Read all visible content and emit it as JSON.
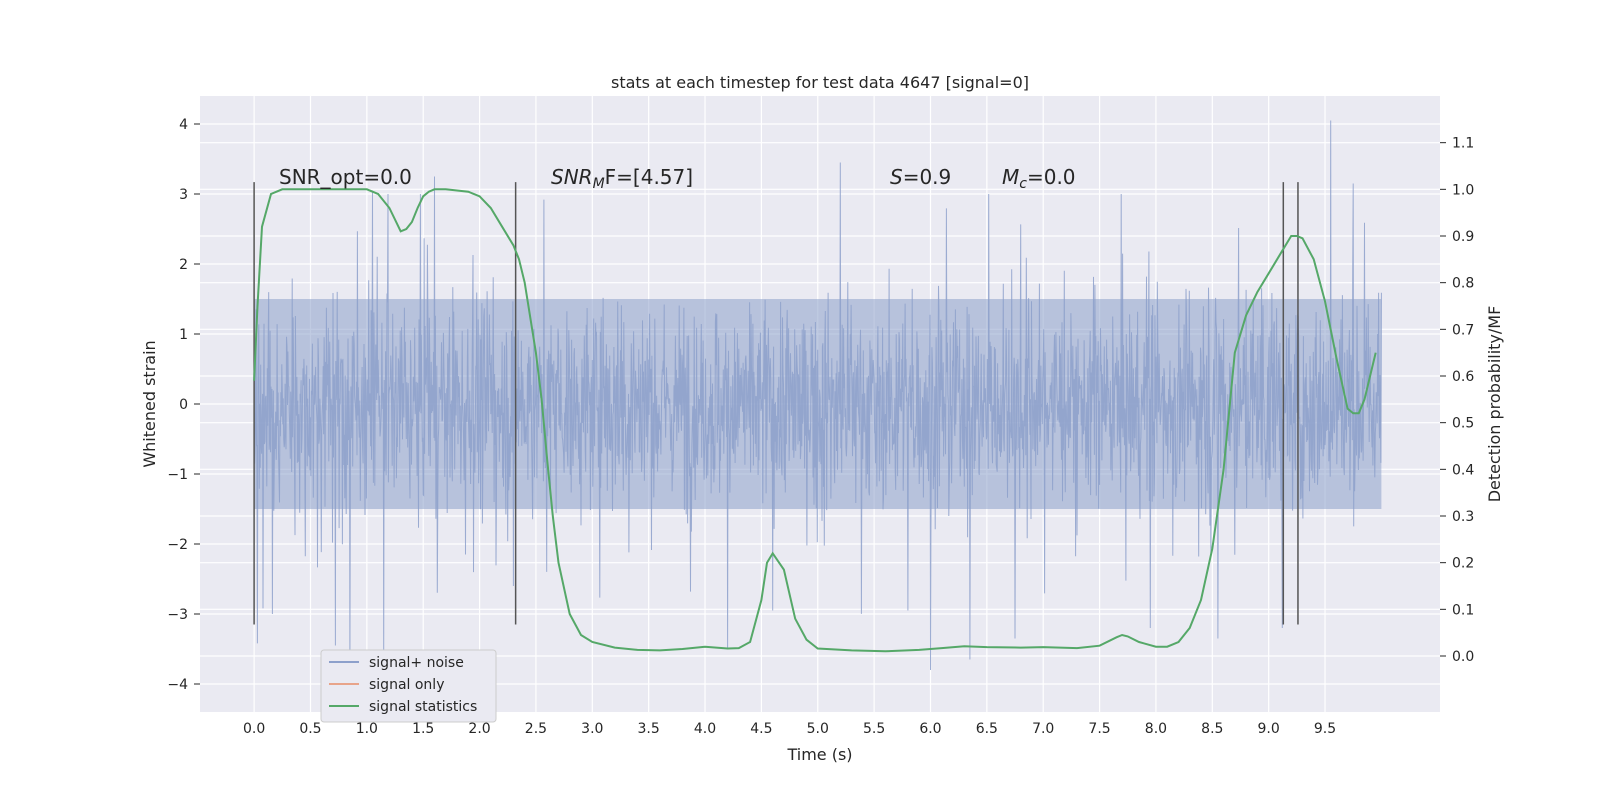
{
  "chart_data": {
    "type": "line",
    "title": "stats at each timestep for test data 4647 [signal=0]",
    "xlabel": "Time (s)",
    "ylabel": "Whitened strain",
    "y2label": "Detection probability/MF",
    "xlim": [
      -0.48,
      10.52
    ],
    "ylim": [
      -4.4,
      4.4
    ],
    "y2lim": [
      -0.12,
      1.2
    ],
    "grid": true,
    "x_ticks": [
      "0.0",
      "0.5",
      "1.0",
      "1.5",
      "2.0",
      "2.5",
      "3.0",
      "3.5",
      "4.0",
      "4.5",
      "5.0",
      "5.5",
      "6.0",
      "6.5",
      "7.0",
      "7.5",
      "8.0",
      "8.5",
      "9.0",
      "9.5"
    ],
    "y_ticks": [
      "−4",
      "−3",
      "−2",
      "−1",
      "0",
      "1",
      "2",
      "3",
      "4"
    ],
    "y2_ticks": [
      "0.0",
      "0.1",
      "0.2",
      "0.3",
      "0.4",
      "0.5",
      "0.6",
      "0.7",
      "0.8",
      "0.9",
      "1.0",
      "1.1"
    ],
    "annotations": {
      "snr_opt": "SNR_opt=0.0",
      "snr_mf_base": "SNR",
      "snr_mf_sub": "M",
      "snr_mf_tail": "F=[4.57]",
      "s_base": "S",
      "s_tail": "=0.9",
      "mc_base": "M",
      "mc_sub": "c",
      "mc_tail": "=0.0"
    },
    "vertical_lines_x": [
      0.0,
      2.32,
      9.13,
      9.26
    ],
    "vertical_lines_y": [
      -3.15,
      3.17
    ],
    "legend": {
      "placement": "lower-left",
      "entries": [
        {
          "label": "signal+ noise",
          "color": "#8da0cb"
        },
        {
          "label": "signal only",
          "color": "#e8a48a"
        },
        {
          "label": "signal statistics",
          "color": "#55a868"
        }
      ]
    },
    "series": [
      {
        "name": "signal+ noise",
        "color": "#8da0cb",
        "style": "dense noise trace",
        "x_range": [
          0.0,
          10.0
        ],
        "core_band": [
          -1.5,
          1.5
        ],
        "spike_extremes": [
          [
            0.03,
            -3.42
          ],
          [
            0.08,
            -2.92
          ],
          [
            0.72,
            -3.45
          ],
          [
            0.85,
            -3.8
          ],
          [
            1.15,
            -3.6
          ],
          [
            1.05,
            3.05
          ],
          [
            1.6,
            3.25
          ],
          [
            2.3,
            -2.6
          ],
          [
            4.2,
            -3.5
          ],
          [
            4.6,
            -2.95
          ],
          [
            5.2,
            3.45
          ],
          [
            5.8,
            -2.95
          ],
          [
            6.0,
            -3.8
          ],
          [
            6.35,
            -3.65
          ],
          [
            6.75,
            -3.35
          ],
          [
            7.95,
            -3.2
          ],
          [
            8.55,
            -3.35
          ],
          [
            9.12,
            -3.2
          ],
          [
            9.55,
            4.05
          ],
          [
            9.75,
            3.15
          ]
        ]
      },
      {
        "name": "signal statistics",
        "color": "#55a868",
        "axis": "right",
        "x": [
          0.0,
          0.03,
          0.07,
          0.15,
          0.25,
          0.5,
          0.8,
          1.0,
          1.1,
          1.2,
          1.3,
          1.35,
          1.4,
          1.45,
          1.5,
          1.55,
          1.6,
          1.7,
          1.9,
          2.0,
          2.1,
          2.2,
          2.3,
          2.35,
          2.4,
          2.5,
          2.55,
          2.6,
          2.65,
          2.7,
          2.8,
          2.9,
          3.0,
          3.2,
          3.4,
          3.6,
          3.8,
          4.0,
          4.2,
          4.3,
          4.4,
          4.5,
          4.55,
          4.6,
          4.7,
          4.8,
          4.9,
          5.0,
          5.3,
          5.6,
          5.9,
          6.1,
          6.3,
          6.5,
          6.8,
          7.0,
          7.3,
          7.5,
          7.65,
          7.7,
          7.75,
          7.85,
          8.0,
          8.1,
          8.2,
          8.3,
          8.4,
          8.5,
          8.6,
          8.7,
          8.8,
          8.9,
          9.0,
          9.1,
          9.2,
          9.25,
          9.3,
          9.4,
          9.5,
          9.6,
          9.7,
          9.75,
          9.8,
          9.85,
          9.95
        ],
        "values": [
          0.59,
          0.75,
          0.92,
          0.99,
          1.0,
          1.0,
          1.0,
          1.0,
          0.99,
          0.96,
          0.91,
          0.915,
          0.93,
          0.96,
          0.985,
          0.995,
          1.0,
          1.0,
          0.995,
          0.985,
          0.96,
          0.92,
          0.88,
          0.85,
          0.8,
          0.65,
          0.55,
          0.42,
          0.3,
          0.2,
          0.09,
          0.045,
          0.03,
          0.018,
          0.013,
          0.012,
          0.015,
          0.02,
          0.016,
          0.017,
          0.03,
          0.12,
          0.2,
          0.22,
          0.185,
          0.08,
          0.035,
          0.016,
          0.012,
          0.01,
          0.013,
          0.017,
          0.021,
          0.019,
          0.018,
          0.019,
          0.017,
          0.022,
          0.04,
          0.045,
          0.042,
          0.03,
          0.02,
          0.02,
          0.03,
          0.06,
          0.12,
          0.23,
          0.4,
          0.65,
          0.73,
          0.78,
          0.82,
          0.86,
          0.9,
          0.9,
          0.895,
          0.85,
          0.76,
          0.64,
          0.53,
          0.52,
          0.52,
          0.55,
          0.65
        ]
      }
    ]
  }
}
